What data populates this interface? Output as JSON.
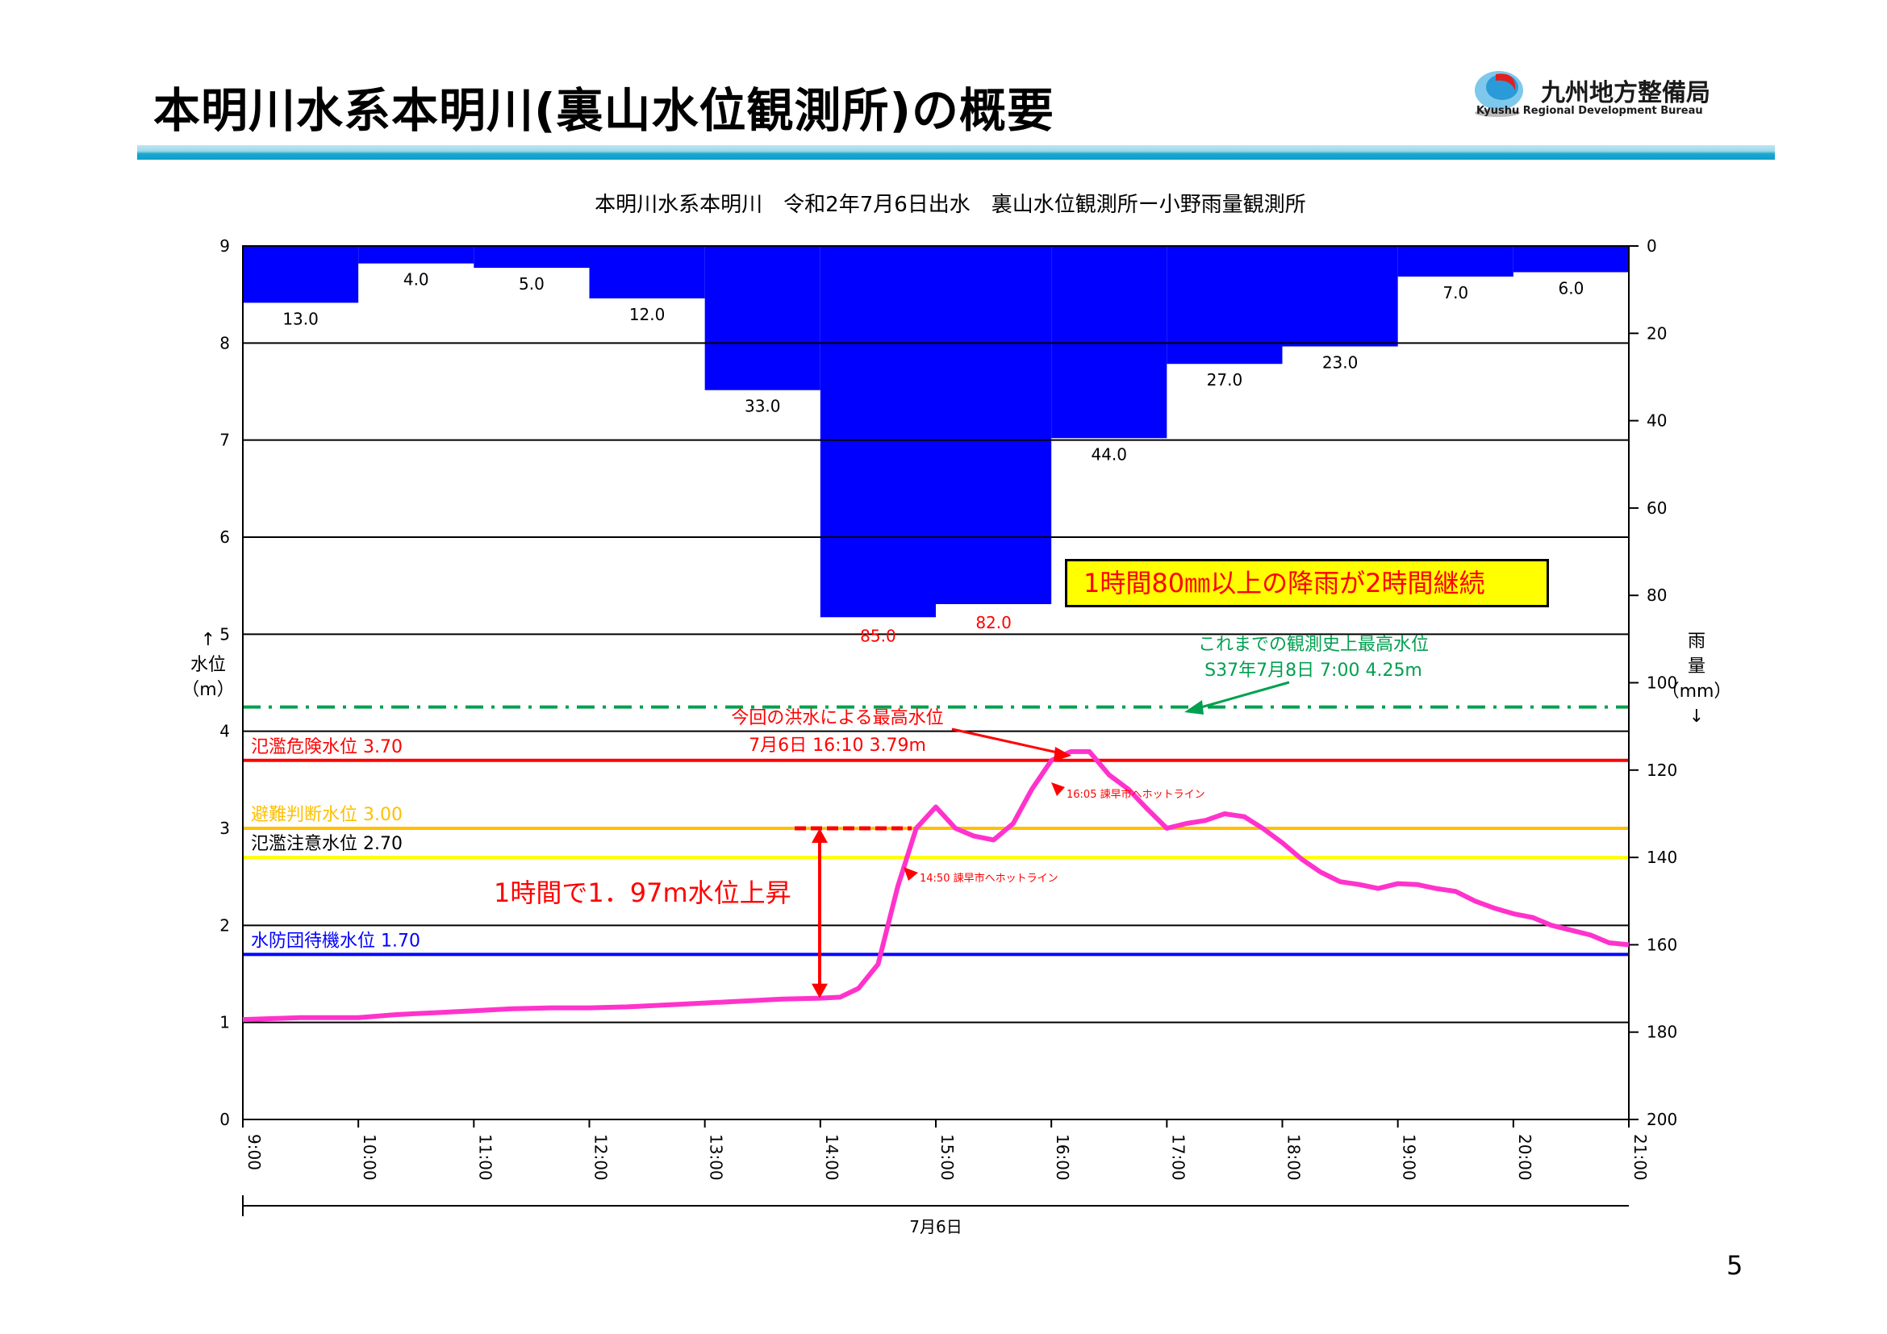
{
  "header": {
    "title": "本明川水系本明川(裏山水位観測所)の概要",
    "logo_text": "九州地方整備局",
    "logo_sub": "Kyushu Regional Development Bureau"
  },
  "page_number": "5",
  "colors": {
    "rain": "#0000ff",
    "water_level": "#ff33cc",
    "danger": "#ff0000",
    "evac": "#ffc000",
    "caution": "#ffff00",
    "standby": "#0000ff",
    "record": "#00a050",
    "annotation": "#ff0000"
  },
  "chart_data": {
    "type": "bar+line",
    "title": "本明川水系本明川　令和2年7月6日出水　裏山水位観測所ー小野雨量観測所",
    "x_ticks": [
      "9:00",
      "10:00",
      "11:00",
      "12:00",
      "13:00",
      "14:00",
      "15:00",
      "16:00",
      "17:00",
      "18:00",
      "19:00",
      "20:00",
      "21:00"
    ],
    "xlabel": "7月6日",
    "y_left": {
      "label": "水位(m)",
      "label_lines": [
        "↑",
        "水位",
        "（m）"
      ],
      "range": [
        0,
        9
      ],
      "ticks": [
        "0",
        "1",
        "2",
        "3",
        "4",
        "5",
        "6",
        "7",
        "8",
        "9"
      ]
    },
    "y_right": {
      "label": "雨量(mm)",
      "label_lines": [
        "雨",
        "量",
        "（mm）",
        "↓"
      ],
      "range": [
        0,
        200
      ],
      "inverted": true,
      "ticks": [
        "0",
        "20",
        "40",
        "60",
        "80",
        "100",
        "120",
        "140",
        "160",
        "180",
        "200"
      ]
    },
    "rainfall": {
      "hours": [
        "9:00-10:00",
        "10:00-11:00",
        "11:00-12:00",
        "12:00-13:00",
        "13:00-14:00",
        "14:00-15:00",
        "15:00-16:00",
        "16:00-17:00",
        "17:00-18:00",
        "18:00-19:00",
        "19:00-20:00",
        "20:00-21:00"
      ],
      "values": [
        13.0,
        4.0,
        5.0,
        12.0,
        33.0,
        85.0,
        82.0,
        44.0,
        27.0,
        23.0,
        7.0,
        6.0
      ],
      "labels": [
        "13.0",
        "4.0",
        "5.0",
        "12.0",
        "33.0",
        "85.0",
        "82.0",
        "44.0",
        "27.0",
        "23.0",
        "7.0",
        "6.0"
      ]
    },
    "water_level": {
      "x_hours": [
        9.0,
        9.5,
        10.0,
        10.33,
        10.67,
        11.0,
        11.33,
        11.67,
        12.0,
        12.33,
        12.67,
        13.0,
        13.33,
        13.67,
        14.0,
        14.17,
        14.33,
        14.5,
        14.67,
        14.83,
        15.0,
        15.17,
        15.33,
        15.5,
        15.67,
        15.83,
        16.0,
        16.17,
        16.33,
        16.5,
        16.67,
        16.83,
        17.0,
        17.17,
        17.33,
        17.5,
        17.67,
        17.83,
        18.0,
        18.17,
        18.33,
        18.5,
        18.67,
        18.83,
        19.0,
        19.17,
        19.33,
        19.5,
        19.67,
        19.83,
        20.0,
        20.17,
        20.33,
        20.5,
        20.67,
        20.83,
        21.0
      ],
      "values": [
        1.03,
        1.05,
        1.05,
        1.08,
        1.1,
        1.12,
        1.14,
        1.15,
        1.15,
        1.16,
        1.18,
        1.2,
        1.22,
        1.24,
        1.25,
        1.26,
        1.35,
        1.6,
        2.4,
        3.0,
        3.22,
        3.0,
        2.92,
        2.88,
        3.05,
        3.4,
        3.7,
        3.79,
        3.79,
        3.55,
        3.4,
        3.2,
        3.0,
        3.05,
        3.08,
        3.15,
        3.12,
        3.0,
        2.85,
        2.68,
        2.55,
        2.45,
        2.42,
        2.38,
        2.43,
        2.42,
        2.38,
        2.35,
        2.25,
        2.18,
        2.12,
        2.08,
        2.0,
        1.95,
        1.9,
        1.82,
        1.8
      ]
    },
    "reference_levels": [
      {
        "name": "氾濫危険水位",
        "value": 3.7,
        "label": "氾濫危険水位 3.70"
      },
      {
        "name": "避難判断水位",
        "value": 3.0,
        "label": "避難判断水位 3.00"
      },
      {
        "name": "氾濫注意水位",
        "value": 2.7,
        "label": "氾濫注意水位 2.70"
      },
      {
        "name": "水防団待機水位",
        "value": 1.7,
        "label": "水防団待機水位 1.70"
      },
      {
        "name": "これまでの観測史上最高水位",
        "value": 4.25
      }
    ],
    "annotations": {
      "heavy_rain": "1時間80㎜以上の降雨が2時間継続",
      "record_title": "これまでの観測史上最高水位",
      "record_detail": "S37年7月8日 7:00  4.25m",
      "peak_title": "今回の洪水による最高水位",
      "peak_detail": "7月6日 16:10  3.79m",
      "rise": "1時間で1．97m水位上昇",
      "notice1": "14:50  諫早市へホットライン",
      "notice2": "16:05  諫早市へホットライン"
    },
    "grid": true
  }
}
